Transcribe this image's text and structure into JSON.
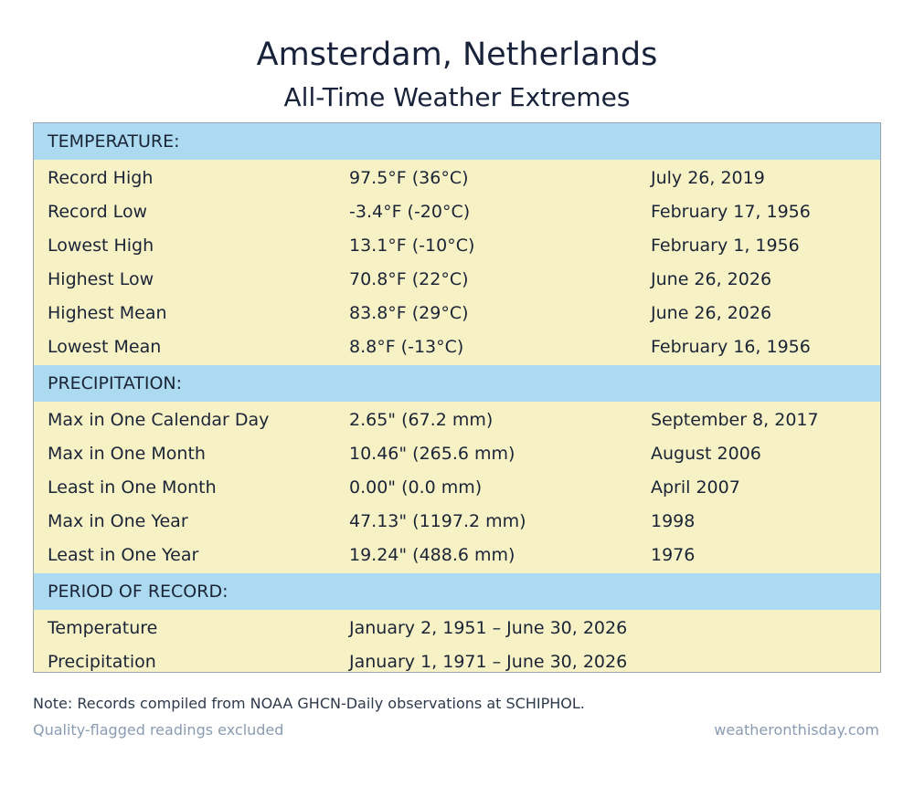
{
  "header": {
    "title": "Amsterdam, Netherlands",
    "subtitle": "All-Time Weather Extremes"
  },
  "sections": [
    {
      "heading": "TEMPERATURE:",
      "rows": [
        {
          "label": "Record High",
          "value": "97.5°F (36°C)",
          "date": "July 26, 2019"
        },
        {
          "label": "Record Low",
          "value": "-3.4°F (-20°C)",
          "date": "February 17, 1956"
        },
        {
          "label": "Lowest High",
          "value": "13.1°F (-10°C)",
          "date": "February 1, 1956"
        },
        {
          "label": "Highest Low",
          "value": "70.8°F (22°C)",
          "date": "June 26, 2026"
        },
        {
          "label": "Highest Mean",
          "value": "83.8°F (29°C)",
          "date": "June 26, 2026"
        },
        {
          "label": "Lowest Mean",
          "value": "8.8°F (-13°C)",
          "date": "February 16, 1956"
        }
      ]
    },
    {
      "heading": "PRECIPITATION:",
      "rows": [
        {
          "label": "Max in One Calendar Day",
          "value": "2.65\" (67.2 mm)",
          "date": "September 8, 2017"
        },
        {
          "label": "Max in One Month",
          "value": "10.46\" (265.6 mm)",
          "date": "August 2006"
        },
        {
          "label": "Least in One Month",
          "value": "0.00\" (0.0 mm)",
          "date": "April 2007"
        },
        {
          "label": "Max in One Year",
          "value": "47.13\" (1197.2 mm)",
          "date": "1998"
        },
        {
          "label": "Least in One Year",
          "value": "19.24\" (488.6 mm)",
          "date": "1976"
        }
      ]
    },
    {
      "heading": "PERIOD OF RECORD:",
      "rows": [
        {
          "label": "Temperature",
          "value": "January 2, 1951 – June 30, 2026",
          "date": ""
        },
        {
          "label": "Precipitation",
          "value": "January 1, 1971 – June 30, 2026",
          "date": ""
        }
      ]
    }
  ],
  "footer": {
    "note": "Note: Records compiled from NOAA GHCN-Daily observations at SCHIPHOL.",
    "left": "Quality-flagged readings excluded",
    "right": "weatheronthisday.com"
  },
  "colors": {
    "section_header_bg": "#acdaf0",
    "row_bg": "#f7f2c6",
    "title_text": "#18223a",
    "footer_text": "#8a9bb3"
  }
}
